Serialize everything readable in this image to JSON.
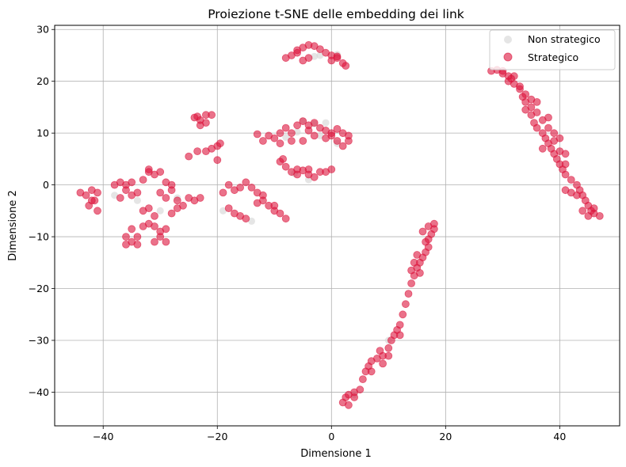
{
  "chart_data": {
    "type": "scatter",
    "title": "Proiezione t-SNE delle embedding dei link",
    "xlabel": "Dimensione 1",
    "ylabel": "Dimensione 2",
    "xlim": [
      -48.5,
      50.5
    ],
    "ylim": [
      -46.5,
      30.8
    ],
    "xticks": [
      -40,
      -20,
      0,
      20,
      40
    ],
    "yticks": [
      -40,
      -30,
      -20,
      -10,
      0,
      10,
      20,
      30
    ],
    "xtick_labels": [
      "−40",
      "−20",
      "0",
      "20",
      "40"
    ],
    "ytick_labels": [
      "−40",
      "−30",
      "−20",
      "−10",
      "0",
      "10",
      "20",
      "30"
    ],
    "grid": true,
    "legend_position": "top-right",
    "series": [
      {
        "name": "Non strategico",
        "color": "#d3d3d3",
        "points": [
          [
            -5,
            12.3
          ],
          [
            -3,
            11.8
          ],
          [
            -1,
            12.0
          ],
          [
            -2,
            9.5
          ],
          [
            -6,
            10.2
          ],
          [
            -4,
            1.0
          ],
          [
            -6.5,
            2.2
          ],
          [
            -2,
            25.0
          ],
          [
            -3,
            24.8
          ],
          [
            1,
            25.2
          ],
          [
            -30,
            -5.0
          ],
          [
            -38,
            -2.0
          ],
          [
            -14,
            -7.0
          ],
          [
            -8,
            9.2
          ],
          [
            1,
            8.0
          ],
          [
            -19,
            -5.0
          ],
          [
            -34,
            -3.0
          ],
          [
            -27,
            -2.5
          ],
          [
            10,
            -30.0
          ],
          [
            4,
            -40.5
          ]
        ]
      },
      {
        "name": "Strategico",
        "color": "#dc143c",
        "points": [
          [
            -6,
            25.5
          ],
          [
            -5,
            26.5
          ],
          [
            -4,
            27.0
          ],
          [
            -3,
            26.8
          ],
          [
            -2,
            26.2
          ],
          [
            -1,
            25.5
          ],
          [
            0,
            25.0
          ],
          [
            1,
            24.5
          ],
          [
            2,
            23.5
          ],
          [
            2.5,
            23.0
          ],
          [
            -8,
            24.5
          ],
          [
            -7,
            25.0
          ],
          [
            -5,
            24.0
          ],
          [
            -4,
            24.5
          ],
          [
            1,
            24.8
          ],
          [
            0,
            24.0
          ],
          [
            -6,
            26.0
          ],
          [
            -7,
            10.0
          ],
          [
            -6,
            11.5
          ],
          [
            -5,
            12.3
          ],
          [
            -4,
            11.5
          ],
          [
            -3,
            12.0
          ],
          [
            -2,
            11.0
          ],
          [
            -1,
            10.5
          ],
          [
            0,
            10.0
          ],
          [
            1,
            10.8
          ],
          [
            2,
            10.0
          ],
          [
            3,
            9.5
          ],
          [
            3,
            8.5
          ],
          [
            2,
            7.5
          ],
          [
            1,
            8.5
          ],
          [
            -8,
            11.0
          ],
          [
            -9,
            10.0
          ],
          [
            -10,
            9.0
          ],
          [
            -11,
            9.5
          ],
          [
            -12,
            8.5
          ],
          [
            -13,
            9.8
          ],
          [
            -9,
            8.0
          ],
          [
            -7,
            8.5
          ],
          [
            -5,
            8.5
          ],
          [
            -3,
            9.5
          ],
          [
            -1,
            9.0
          ],
          [
            0,
            9.5
          ],
          [
            -4,
            10.5
          ],
          [
            -8,
            3.5
          ],
          [
            -7,
            2.5
          ],
          [
            -6,
            2.0
          ],
          [
            -5,
            2.8
          ],
          [
            -4,
            2.0
          ],
          [
            -3,
            1.5
          ],
          [
            -2,
            2.5
          ],
          [
            -1,
            2.5
          ],
          [
            0,
            3.0
          ],
          [
            -9,
            4.5
          ],
          [
            -8.5,
            5.0
          ],
          [
            -6,
            3.0
          ],
          [
            -4,
            3.0
          ],
          [
            -23.5,
            13.2
          ],
          [
            -23,
            12.5
          ],
          [
            -22,
            12.0
          ],
          [
            -23,
            11.5
          ],
          [
            -22,
            13.5
          ],
          [
            -21,
            13.5
          ],
          [
            -24,
            13.0
          ],
          [
            -23.5,
            6.5
          ],
          [
            -22,
            6.5
          ],
          [
            -21,
            7.0
          ],
          [
            -20,
            7.5
          ],
          [
            -19.5,
            8.0
          ],
          [
            -25,
            5.5
          ],
          [
            -20,
            4.8
          ],
          [
            -44,
            -1.5
          ],
          [
            -43,
            -2.0
          ],
          [
            -42,
            -1.0
          ],
          [
            -41,
            -1.5
          ],
          [
            -41.5,
            -3.0
          ],
          [
            -42.5,
            -4.0
          ],
          [
            -41,
            -5.0
          ],
          [
            -42,
            -3.0
          ],
          [
            -38,
            0.0
          ],
          [
            -37,
            0.5
          ],
          [
            -36,
            -1.0
          ],
          [
            -35,
            -2.0
          ],
          [
            -36,
            0.0
          ],
          [
            -37,
            -2.5
          ],
          [
            -34,
            -1.5
          ],
          [
            -35,
            0.5
          ],
          [
            -33,
            1.0
          ],
          [
            -32,
            2.5
          ],
          [
            -31,
            2.0
          ],
          [
            -32,
            3.0
          ],
          [
            -30,
            2.5
          ],
          [
            -29,
            0.5
          ],
          [
            -30,
            -1.5
          ],
          [
            -29,
            -2.5
          ],
          [
            -28,
            -1.0
          ],
          [
            -28,
            0.0
          ],
          [
            -27,
            -3.0
          ],
          [
            -27,
            -4.5
          ],
          [
            -28,
            -5.5
          ],
          [
            -26,
            -4.0
          ],
          [
            -25,
            -2.5
          ],
          [
            -24,
            -3.0
          ],
          [
            -23,
            -2.5
          ],
          [
            -33,
            -5.0
          ],
          [
            -32,
            -4.5
          ],
          [
            -31,
            -6.0
          ],
          [
            -32,
            -7.5
          ],
          [
            -33,
            -8.0
          ],
          [
            -31,
            -8.0
          ],
          [
            -30,
            -9.0
          ],
          [
            -29,
            -8.5
          ],
          [
            -30,
            -10.0
          ],
          [
            -31,
            -11.0
          ],
          [
            -29,
            -11.0
          ],
          [
            -34,
            -10.0
          ],
          [
            -35,
            -11.0
          ],
          [
            -36,
            -10.0
          ],
          [
            -36,
            -11.5
          ],
          [
            -34,
            -11.5
          ],
          [
            -35,
            -8.5
          ],
          [
            -18,
            0.0
          ],
          [
            -17,
            -1.0
          ],
          [
            -16,
            -0.5
          ],
          [
            -15,
            0.5
          ],
          [
            -14,
            -0.5
          ],
          [
            -13,
            -1.5
          ],
          [
            -12,
            -2.0
          ],
          [
            -12,
            -3.0
          ],
          [
            -13,
            -3.5
          ],
          [
            -11,
            -4.0
          ],
          [
            -10,
            -5.0
          ],
          [
            -10,
            -4.0
          ],
          [
            -9,
            -5.5
          ],
          [
            -8,
            -6.5
          ],
          [
            -19,
            -1.5
          ],
          [
            -18,
            -4.5
          ],
          [
            -17,
            -5.5
          ],
          [
            -16,
            -6.0
          ],
          [
            -15,
            -6.5
          ],
          [
            28,
            22.0
          ],
          [
            29,
            22.2
          ],
          [
            30,
            22.0
          ],
          [
            31,
            21.0
          ],
          [
            31.5,
            20.5
          ],
          [
            32,
            19.5
          ],
          [
            33,
            18.5
          ],
          [
            33.5,
            17.0
          ],
          [
            34,
            16.0
          ],
          [
            34,
            14.5
          ],
          [
            35,
            13.5
          ],
          [
            35.5,
            12.0
          ],
          [
            36,
            11.0
          ],
          [
            37,
            10.0
          ],
          [
            37.5,
            9.0
          ],
          [
            38,
            8.0
          ],
          [
            38.5,
            7.0
          ],
          [
            39,
            6.0
          ],
          [
            39.5,
            5.0
          ],
          [
            40,
            4.0
          ],
          [
            40.5,
            3.0
          ],
          [
            41,
            2.0
          ],
          [
            42,
            1.0
          ],
          [
            43,
            0.0
          ],
          [
            43.5,
            -1.0
          ],
          [
            44,
            -2.0
          ],
          [
            44.5,
            -3.0
          ],
          [
            45,
            -4.0
          ],
          [
            45.5,
            -5.0
          ],
          [
            46,
            -5.5
          ],
          [
            47,
            -6.0
          ],
          [
            46,
            -4.5
          ],
          [
            45,
            -6.0
          ],
          [
            44,
            -5.0
          ],
          [
            30,
            21.5
          ],
          [
            31,
            20.0
          ],
          [
            32,
            21.0
          ],
          [
            33,
            19.0
          ],
          [
            34,
            17.5
          ],
          [
            35,
            15.0
          ],
          [
            36,
            14.0
          ],
          [
            37,
            12.5
          ],
          [
            38,
            11.0
          ],
          [
            39,
            10.0
          ],
          [
            40,
            9.0
          ],
          [
            38,
            13.0
          ],
          [
            36,
            16.0
          ],
          [
            35,
            16.5
          ],
          [
            37,
            7.0
          ],
          [
            39,
            8.5
          ],
          [
            40,
            6.5
          ],
          [
            41,
            6.0
          ],
          [
            41,
            4.0
          ],
          [
            42,
            -1.5
          ],
          [
            43,
            -2.0
          ],
          [
            41,
            -1.0
          ],
          [
            2,
            -42.0
          ],
          [
            2.5,
            -41.0
          ],
          [
            3,
            -40.5
          ],
          [
            4,
            -40.0
          ],
          [
            5,
            -39.5
          ],
          [
            5.5,
            -37.5
          ],
          [
            6,
            -36.0
          ],
          [
            6.5,
            -35.0
          ],
          [
            7,
            -34.0
          ],
          [
            8,
            -33.5
          ],
          [
            8.5,
            -32.0
          ],
          [
            9,
            -33.0
          ],
          [
            10,
            -31.5
          ],
          [
            10.5,
            -30.0
          ],
          [
            11,
            -29.0
          ],
          [
            11.5,
            -28.0
          ],
          [
            12,
            -27.0
          ],
          [
            12.5,
            -25.0
          ],
          [
            13,
            -23.0
          ],
          [
            13.5,
            -21.0
          ],
          [
            14,
            -19.0
          ],
          [
            14.5,
            -17.5
          ],
          [
            15,
            -16.0
          ],
          [
            15.5,
            -15.0
          ],
          [
            16,
            -14.0
          ],
          [
            16.5,
            -13.0
          ],
          [
            17,
            -12.0
          ],
          [
            17,
            -10.5
          ],
          [
            17.5,
            -9.5
          ],
          [
            18,
            -8.5
          ],
          [
            18,
            -7.5
          ],
          [
            17,
            -8.0
          ],
          [
            16,
            -9.0
          ],
          [
            16.5,
            -11.0
          ],
          [
            15,
            -13.5
          ],
          [
            14.5,
            -15.0
          ],
          [
            3,
            -42.5
          ],
          [
            4,
            -41.0
          ],
          [
            7,
            -36.0
          ],
          [
            9,
            -34.5
          ],
          [
            10,
            -33.0
          ],
          [
            12,
            -29.0
          ],
          [
            14,
            -16.5
          ],
          [
            15.5,
            -17.0
          ]
        ]
      }
    ]
  }
}
